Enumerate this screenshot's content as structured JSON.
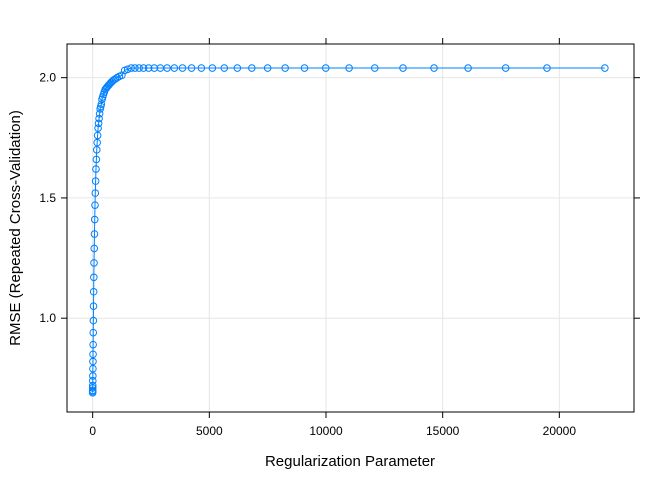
{
  "chart_data": {
    "type": "line",
    "title": "",
    "xlabel": "Regularization Parameter",
    "ylabel": "RMSE (Repeated Cross-Validation)",
    "xlim": [
      -1100,
      23200
    ],
    "ylim": [
      0.61,
      2.14
    ],
    "xticks": [
      0,
      5000,
      10000,
      15000,
      20000
    ],
    "yticks": [
      1.0,
      1.5,
      2.0
    ],
    "grid": true,
    "line_color": "#0080FF",
    "marker": "open-circle",
    "series": [
      {
        "name": "",
        "x": [
          0,
          0.5,
          1,
          2,
          3,
          5,
          7,
          10,
          13,
          16,
          20,
          25,
          30,
          36,
          43,
          50,
          58,
          67,
          77,
          88,
          100,
          113,
          127,
          142,
          158,
          175,
          193,
          212,
          232,
          253,
          275,
          298,
          322,
          347,
          373,
          400,
          430,
          462,
          496,
          532,
          570,
          610,
          652,
          696,
          742,
          790,
          840,
          900,
          970,
          1050,
          1140,
          1250,
          1370,
          1500,
          1650,
          1810,
          1990,
          2180,
          2400,
          2640,
          2900,
          3190,
          3500,
          3850,
          4240,
          4660,
          5130,
          5640,
          6200,
          6820,
          7500,
          8250,
          9080,
          9990,
          10990,
          12090,
          13300,
          14630,
          16090,
          17700,
          19470,
          21950
        ],
        "y": [
          0.69,
          0.695,
          0.7,
          0.71,
          0.72,
          0.74,
          0.76,
          0.79,
          0.82,
          0.85,
          0.89,
          0.94,
          0.99,
          1.05,
          1.11,
          1.17,
          1.23,
          1.29,
          1.35,
          1.41,
          1.47,
          1.52,
          1.57,
          1.62,
          1.66,
          1.7,
          1.73,
          1.76,
          1.79,
          1.81,
          1.83,
          1.85,
          1.87,
          1.88,
          1.89,
          1.91,
          1.92,
          1.93,
          1.94,
          1.95,
          1.955,
          1.96,
          1.965,
          1.97,
          1.975,
          1.98,
          1.985,
          1.99,
          1.995,
          2.0,
          2.005,
          2.01,
          2.03,
          2.035,
          2.04,
          2.04,
          2.04,
          2.04,
          2.04,
          2.04,
          2.04,
          2.04,
          2.04,
          2.04,
          2.04,
          2.04,
          2.04,
          2.04,
          2.04,
          2.04,
          2.04,
          2.04,
          2.04,
          2.04,
          2.04,
          2.04,
          2.04,
          2.04,
          2.04,
          2.04,
          2.04,
          2.04
        ]
      }
    ]
  }
}
